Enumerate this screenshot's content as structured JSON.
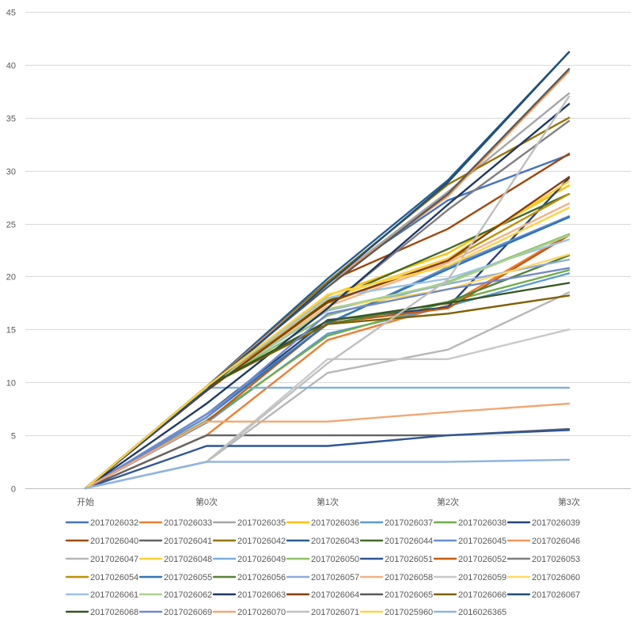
{
  "chart_data": {
    "type": "line",
    "title": "",
    "xlabel": "",
    "ylabel": "",
    "ylim": [
      0,
      45
    ],
    "yticks": [
      0,
      5,
      10,
      15,
      20,
      25,
      30,
      35,
      40,
      45
    ],
    "grid": true,
    "legend_position": "bottom",
    "categories": [
      "开始",
      "第0次",
      "第1次",
      "第2次",
      "第3次"
    ],
    "series": [
      {
        "name": "2017026032",
        "color": "#4472c4",
        "values": [
          0,
          9.6,
          19.5,
          27.2,
          31.5
        ]
      },
      {
        "name": "2017026033",
        "color": "#ed7d31",
        "values": [
          0,
          5.0,
          14.0,
          17.3,
          24.0
        ]
      },
      {
        "name": "2017026035",
        "color": "#a5a5a5",
        "values": [
          0,
          9.6,
          19.3,
          28.0,
          37.3
        ]
      },
      {
        "name": "2017026036",
        "color": "#ffc000",
        "values": [
          0,
          9.5,
          18.2,
          22.2,
          28.6
        ]
      },
      {
        "name": "2017026037",
        "color": "#5b9bd5",
        "values": [
          0,
          6.2,
          14.6,
          17.2,
          20.3
        ]
      },
      {
        "name": "2017026038",
        "color": "#70ad47",
        "values": [
          0,
          6.4,
          14.4,
          17.6,
          20.6
        ]
      },
      {
        "name": "2017026039",
        "color": "#264478",
        "values": [
          0,
          7.0,
          15.9,
          17.1,
          29.3
        ]
      },
      {
        "name": "2017026040",
        "color": "#9e480e",
        "values": [
          0,
          9.6,
          19.5,
          24.5,
          31.6
        ]
      },
      {
        "name": "2017026041",
        "color": "#636363",
        "values": [
          0,
          5.0,
          5.0,
          5.0,
          5.6
        ]
      },
      {
        "name": "2017026042",
        "color": "#997300",
        "values": [
          0,
          9.6,
          19.5,
          28.7,
          35.0
        ]
      },
      {
        "name": "2017026043",
        "color": "#255e91",
        "values": [
          0,
          9.6,
          19.8,
          29.1,
          41.2
        ]
      },
      {
        "name": "2017026044",
        "color": "#43682b",
        "values": [
          0,
          9.6,
          17.7,
          22.6,
          27.8
        ]
      },
      {
        "name": "2017026045",
        "color": "#698ed0",
        "values": [
          0,
          7.0,
          15.5,
          20.9,
          25.7
        ]
      },
      {
        "name": "2017026046",
        "color": "#f1975a",
        "values": [
          0,
          9.6,
          19.3,
          27.6,
          39.4
        ]
      },
      {
        "name": "2017026047",
        "color": "#b7b7b7",
        "values": [
          0,
          2.5,
          10.9,
          13.1,
          18.5
        ]
      },
      {
        "name": "2017026048",
        "color": "#ffcd33",
        "values": [
          0,
          9.5,
          17.9,
          21.7,
          29.0
        ]
      },
      {
        "name": "2017026049",
        "color": "#7cafdd",
        "values": [
          0,
          9.5,
          9.5,
          9.5,
          9.5
        ]
      },
      {
        "name": "2017026050",
        "color": "#8cc168",
        "values": [
          0,
          9.6,
          16.3,
          19.5,
          24.0
        ]
      },
      {
        "name": "2017026051",
        "color": "#2f5597",
        "values": [
          0,
          4.0,
          4.0,
          5.0,
          5.5
        ]
      },
      {
        "name": "2017026052",
        "color": "#c55a11",
        "values": [
          0,
          6.3,
          15.6,
          17.0,
          23.9
        ]
      },
      {
        "name": "2017026053",
        "color": "#7f7f7f",
        "values": [
          0,
          9.6,
          17.1,
          26.3,
          34.7
        ]
      },
      {
        "name": "2017026054",
        "color": "#bf9000",
        "values": [
          0,
          9.6,
          17.5,
          21.5,
          27.8
        ]
      },
      {
        "name": "2017026055",
        "color": "#2e75b6",
        "values": [
          0,
          6.7,
          15.6,
          20.7,
          25.6
        ]
      },
      {
        "name": "2017026056",
        "color": "#548235",
        "values": [
          0,
          9.6,
          15.5,
          17.6,
          22.0
        ]
      },
      {
        "name": "2017026057",
        "color": "#8faadc",
        "values": [
          0,
          9.6,
          16.8,
          19.3,
          21.6
        ]
      },
      {
        "name": "2017026058",
        "color": "#f4b183",
        "values": [
          0,
          9.5,
          17.2,
          21.3,
          26.9
        ]
      },
      {
        "name": "2017026059",
        "color": "#c9c9c9",
        "values": [
          0,
          2.5,
          12.2,
          12.2,
          15.0
        ]
      },
      {
        "name": "2017026060",
        "color": "#ffd966",
        "values": [
          0,
          9.5,
          17.0,
          18.8,
          22.1
        ]
      },
      {
        "name": "2017026061",
        "color": "#9dc3e6",
        "values": [
          0,
          9.6,
          18.0,
          19.8,
          23.5
        ]
      },
      {
        "name": "2017026062",
        "color": "#a9d18e",
        "values": [
          0,
          9.6,
          16.9,
          19.4,
          23.9
        ]
      },
      {
        "name": "2017026063",
        "color": "#1f3864",
        "values": [
          0,
          8.0,
          17.0,
          26.8,
          36.3
        ]
      },
      {
        "name": "2017026064",
        "color": "#843c0c",
        "values": [
          0,
          9.2,
          17.6,
          21.5,
          29.4
        ]
      },
      {
        "name": "2017026065",
        "color": "#595959",
        "values": [
          0,
          9.6,
          19.0,
          27.8,
          39.6
        ]
      },
      {
        "name": "2017026066",
        "color": "#7f6000",
        "values": [
          0,
          9.6,
          15.5,
          16.5,
          18.2
        ]
      },
      {
        "name": "2017026067",
        "color": "#1f4e79",
        "values": [
          0,
          9.3,
          19.3,
          28.9,
          41.2
        ]
      },
      {
        "name": "2017026068",
        "color": "#375623",
        "values": [
          0,
          9.6,
          15.8,
          17.5,
          19.4
        ]
      },
      {
        "name": "2017026069",
        "color": "#7089c9",
        "values": [
          0,
          6.7,
          16.5,
          18.8,
          20.8
        ]
      },
      {
        "name": "2017026070",
        "color": "#f2a774",
        "values": [
          0,
          6.3,
          6.3,
          7.2,
          8.0
        ]
      },
      {
        "name": "2017026071",
        "color": "#bfbfbf",
        "values": [
          0,
          2.5,
          11.8,
          19.7,
          37.0
        ]
      },
      {
        "name": "2017025960",
        "color": "#ffd243",
        "values": [
          0,
          9.6,
          18.3,
          21.0,
          26.5
        ]
      },
      {
        "name": "2016026365",
        "color": "#8eb4e3",
        "values": [
          0,
          2.5,
          2.5,
          2.5,
          2.7
        ]
      }
    ]
  }
}
